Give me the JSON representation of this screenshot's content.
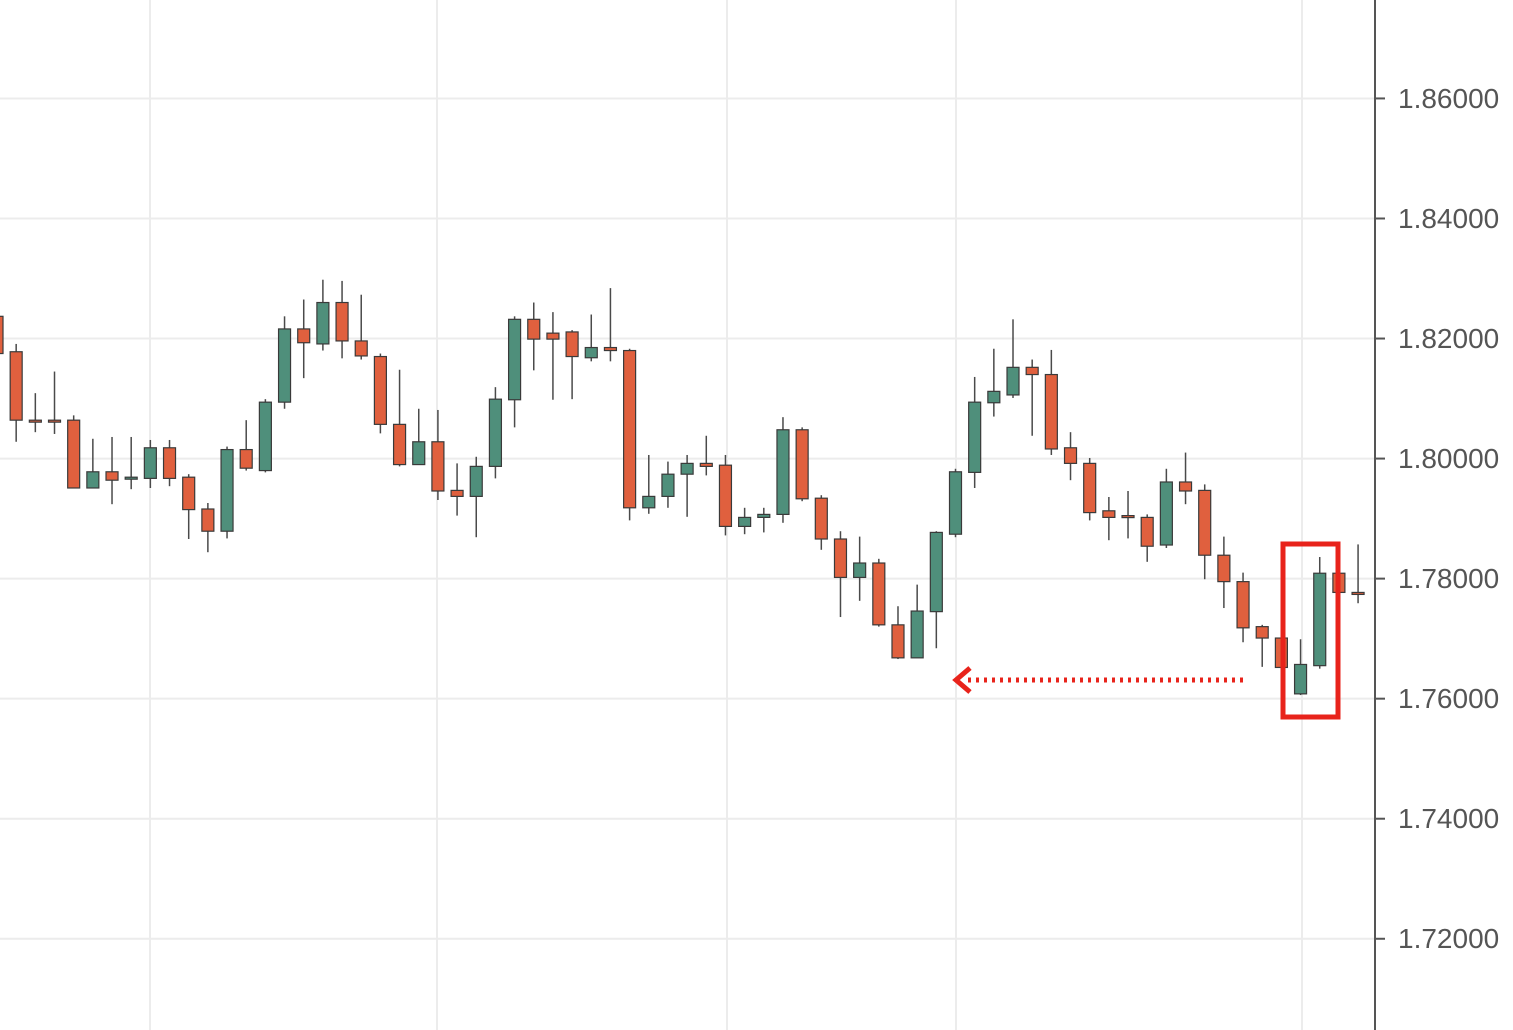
{
  "chart_data": {
    "type": "candlestick",
    "ylim": [
      1.7048,
      1.8764
    ],
    "yticks": [
      {
        "value": 1.86,
        "label": "1.86000"
      },
      {
        "value": 1.84,
        "label": "1.84000"
      },
      {
        "value": 1.82,
        "label": "1.82000"
      },
      {
        "value": 1.8,
        "label": "1.80000"
      },
      {
        "value": 1.78,
        "label": "1.78000"
      },
      {
        "value": 1.76,
        "label": "1.76000"
      },
      {
        "value": 1.74,
        "label": "1.74000"
      },
      {
        "value": 1.72,
        "label": "1.72000"
      }
    ],
    "grid": true,
    "up_color": "#4f8f7b",
    "down_color": "#e0603e",
    "open": [
      1.8237,
      1.8178,
      1.8064,
      1.8064,
      1.8064,
      1.7951,
      1.7978,
      1.7966,
      1.7967,
      1.8018,
      1.7969,
      1.7916,
      1.7879,
      1.8015,
      1.798,
      1.8094,
      1.8216,
      1.8191,
      1.826,
      1.8196,
      1.817,
      1.8057,
      1.799,
      1.8028,
      1.7947,
      1.7937,
      1.7987,
      1.8098,
      1.8232,
      1.8209,
      1.8211,
      1.8168,
      1.8185,
      1.818,
      1.7918,
      1.7937,
      1.7974,
      1.7992,
      1.7989,
      1.7887,
      1.7902,
      1.7907,
      1.8048,
      1.7934,
      1.7866,
      1.7802,
      1.7826,
      1.7723,
      1.7668,
      1.7745,
      1.7874,
      1.7977,
      1.8093,
      1.8106,
      1.8152,
      1.814,
      1.8018,
      1.7992,
      1.7913,
      1.7905,
      1.7902,
      1.7856,
      1.7961,
      1.7947,
      1.7839,
      1.7795,
      1.772,
      1.7701,
      1.7608,
      1.7655,
      1.7809,
      1.7777
    ],
    "high": [
      1.8248,
      1.8191,
      1.8109,
      1.8145,
      1.8072,
      1.8033,
      1.8036,
      1.8036,
      1.8031,
      1.8031,
      1.7974,
      1.7926,
      1.802,
      1.8064,
      1.8099,
      1.8237,
      1.8265,
      1.8298,
      1.8296,
      1.8273,
      1.8175,
      1.8148,
      1.8083,
      1.8081,
      1.7992,
      1.8003,
      1.8119,
      1.8237,
      1.826,
      1.8244,
      1.8214,
      1.824,
      1.8284,
      1.8183,
      1.8006,
      1.7995,
      1.8006,
      1.8038,
      1.8006,
      1.7918,
      1.7918,
      1.8069,
      1.8052,
      1.7939,
      1.7879,
      1.787,
      1.7833,
      1.7754,
      1.779,
      1.7879,
      1.7983,
      1.8136,
      1.8183,
      1.8232,
      1.8165,
      1.8181,
      1.8044,
      1.8001,
      1.7936,
      1.7946,
      1.7907,
      1.7983,
      1.801,
      1.7957,
      1.787,
      1.781,
      1.7723,
      1.7704,
      1.7699,
      1.7836,
      1.7813,
      1.7857
    ],
    "low": [
      1.8167,
      1.8028,
      1.8044,
      1.8041,
      1.7951,
      1.7951,
      1.7924,
      1.7949,
      1.7951,
      1.7954,
      1.7866,
      1.7844,
      1.7867,
      1.798,
      1.7977,
      1.8083,
      1.8134,
      1.818,
      1.8167,
      1.8165,
      1.8042,
      1.7987,
      1.799,
      1.7931,
      1.7905,
      1.7869,
      1.7967,
      1.8052,
      1.8147,
      1.8098,
      1.8099,
      1.8162,
      1.8162,
      1.7897,
      1.7908,
      1.7918,
      1.7903,
      1.7972,
      1.7872,
      1.7874,
      1.7877,
      1.7893,
      1.7929,
      1.7848,
      1.7736,
      1.7763,
      1.772,
      1.7666,
      1.7668,
      1.7684,
      1.7869,
      1.7951,
      1.807,
      1.8101,
      1.8038,
      1.8006,
      1.7964,
      1.7897,
      1.7864,
      1.7867,
      1.7828,
      1.7851,
      1.7924,
      1.7799,
      1.7751,
      1.7694,
      1.7653,
      1.7647,
      1.7606,
      1.765,
      1.7771,
      1.7759
    ],
    "close": [
      1.8175,
      1.8064,
      1.8062,
      1.8062,
      1.7951,
      1.7978,
      1.7964,
      1.7969,
      1.8018,
      1.7967,
      1.7915,
      1.7879,
      1.8015,
      1.7984,
      1.8094,
      1.8216,
      1.8193,
      1.826,
      1.8196,
      1.8171,
      1.8057,
      1.799,
      1.8028,
      1.7946,
      1.7937,
      1.7987,
      1.8099,
      1.8232,
      1.8199,
      1.8199,
      1.817,
      1.8185,
      1.818,
      1.7918,
      1.7937,
      1.7974,
      1.7992,
      1.7987,
      1.7887,
      1.7902,
      1.7907,
      1.8048,
      1.7933,
      1.7866,
      1.7802,
      1.7826,
      1.7723,
      1.7668,
      1.7746,
      1.7877,
      1.7978,
      1.8094,
      1.8112,
      1.8152,
      1.814,
      1.8016,
      1.7992,
      1.791,
      1.7902,
      1.7902,
      1.7854,
      1.7961,
      1.7946,
      1.7839,
      1.7795,
      1.7718,
      1.7701,
      1.7652,
      1.7657,
      1.7809,
      1.7777,
      1.7774
    ]
  }
}
